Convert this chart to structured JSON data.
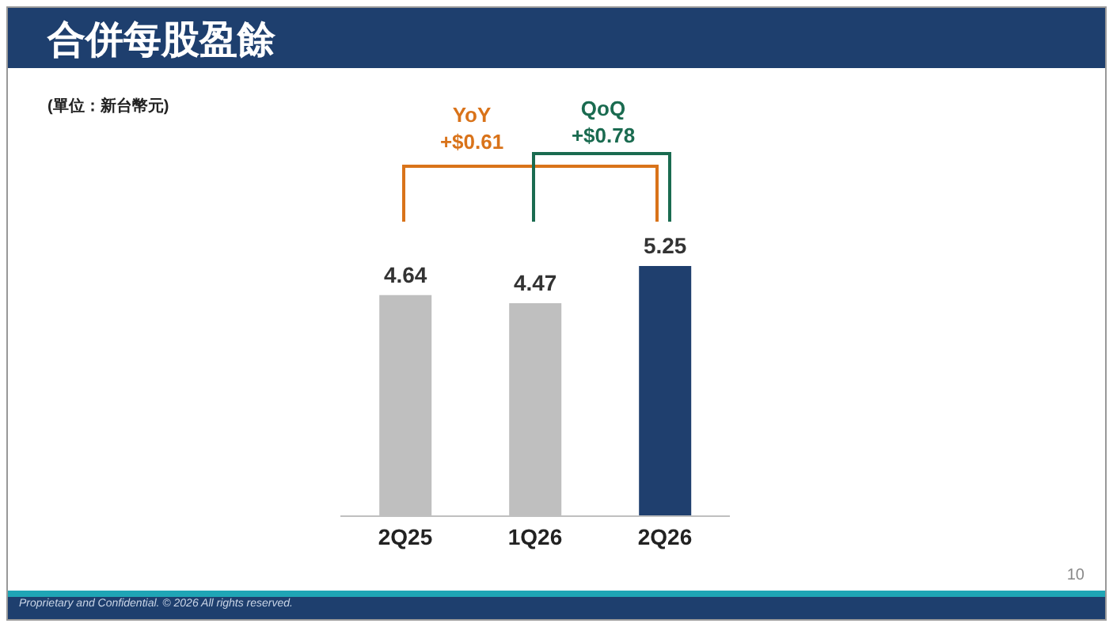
{
  "chart_data": {
    "type": "bar",
    "title": "合併每股盈餘",
    "categories": [
      "2Q25",
      "1Q26",
      "2Q26"
    ],
    "values": [
      4.64,
      4.47,
      5.25
    ],
    "colors": [
      "#bfbfbf",
      "#bfbfbf",
      "#1f3f6e"
    ],
    "data_labels": true,
    "grid": false,
    "legend": false,
    "annotations": [
      "(單位：新台幣元)",
      "YoY",
      "+$0.61",
      "QoQ",
      "+$0.78",
      "10",
      "Proprietary and Confidential. © 2026 All rights reserved."
    ]
  }
}
